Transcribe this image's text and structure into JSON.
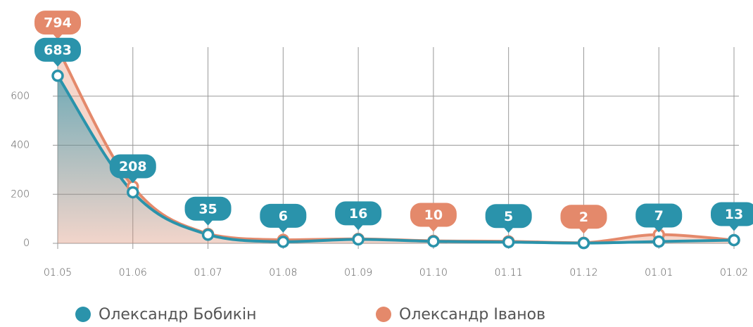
{
  "chart_data": {
    "type": "line",
    "categories": [
      "01.05",
      "01.06",
      "01.07",
      "01.08",
      "01.09",
      "01.10",
      "01.11",
      "01.12",
      "01.01",
      "01.02"
    ],
    "series": [
      {
        "name": "Олександр Іванов",
        "color": "#e4896b",
        "values": [
          794,
          232,
          38,
          14,
          18,
          10,
          8,
          2,
          36,
          13
        ],
        "value_labels": [
          "794",
          null,
          null,
          null,
          null,
          "10",
          null,
          "2",
          null,
          null
        ]
      },
      {
        "name": "Олександр Бобикін",
        "color": "#2a93ab",
        "values": [
          683,
          208,
          35,
          6,
          16,
          8,
          5,
          1,
          7,
          13
        ],
        "value_labels": [
          "683",
          "208",
          "35",
          "6",
          "16",
          null,
          "5",
          null,
          "7",
          "13"
        ]
      }
    ],
    "ylim": [
      0,
      800
    ],
    "yticks": [
      0,
      200,
      400,
      600
    ],
    "grid": true
  }
}
